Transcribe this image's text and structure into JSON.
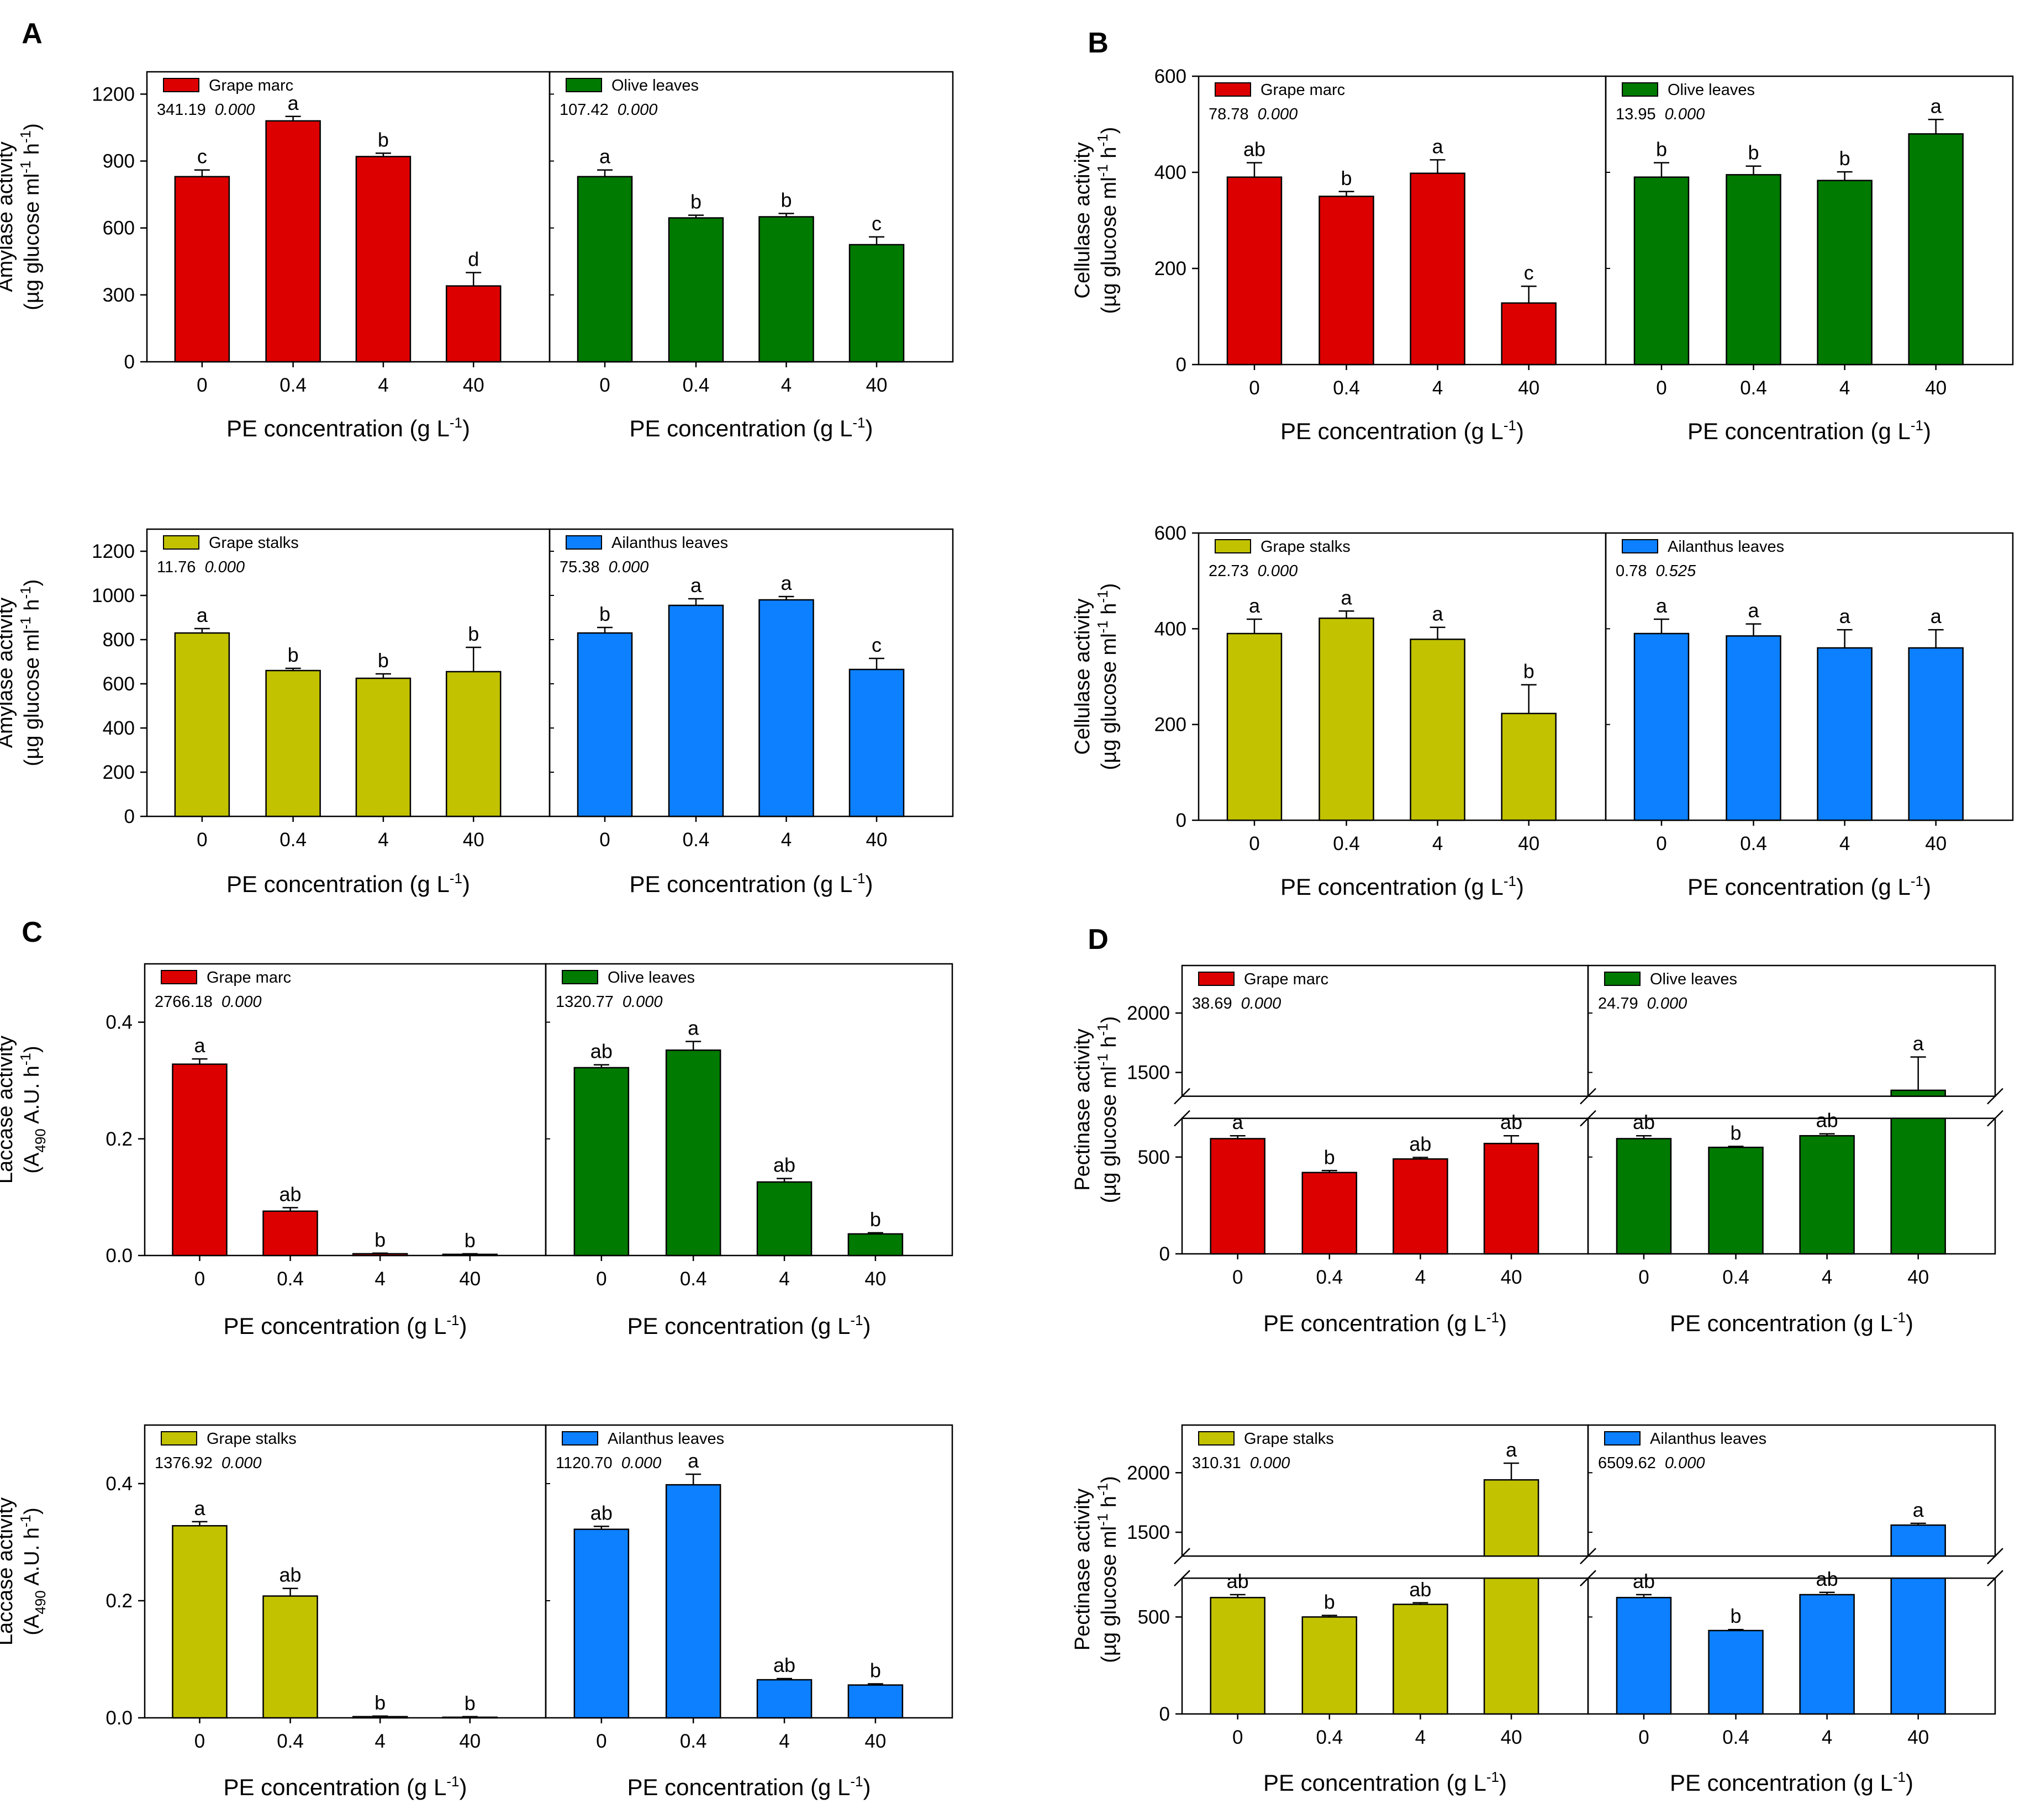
{
  "x_label": "PE concentration (g L",
  "x_label_sup": "-1",
  "x_label_end": ")",
  "categories": [
    "0",
    "0.4",
    "4",
    "40"
  ],
  "colors": {
    "grape_marc": "#dd0000",
    "olive_leaves": "#007a00",
    "grape_stalks": "#c2c200",
    "ailanthus_leaves": "#0c80ff"
  },
  "panels": [
    {
      "id": "A",
      "letter": "A",
      "ylabel_line1": "Amylase activity",
      "ylabel_line2_pre": "(µg glucose ml",
      "ylabel_line2_mid": " h",
      "ylabel_line2_end": ")",
      "rows": [
        {
          "ylim": [
            0,
            1300
          ],
          "yticks": [
            0,
            300,
            600,
            900,
            1200
          ],
          "series": [
            {
              "name": "Grape marc",
              "color_key": "grape_marc",
              "stat_f": "341.19",
              "stat_p": "0.000",
              "values": [
                830,
                1080,
                920,
                340
              ],
              "errors": [
                30,
                20,
                15,
                60
              ],
              "letters": [
                "c",
                "a",
                "b",
                "d"
              ]
            },
            {
              "name": "Olive leaves",
              "color_key": "olive_leaves",
              "stat_f": "107.42",
              "stat_p": "0.000",
              "values": [
                830,
                645,
                650,
                525
              ],
              "errors": [
                30,
                12,
                15,
                35
              ],
              "letters": [
                "a",
                "b",
                "b",
                "c"
              ]
            }
          ]
        },
        {
          "ylim": [
            0,
            1300
          ],
          "yticks": [
            0,
            200,
            400,
            600,
            800,
            1000,
            1200
          ],
          "series": [
            {
              "name": "Grape stalks",
              "color_key": "grape_stalks",
              "stat_f": "11.76",
              "stat_p": "0.000",
              "values": [
                830,
                660,
                625,
                655
              ],
              "errors": [
                20,
                10,
                20,
                110
              ],
              "letters": [
                "a",
                "b",
                "b",
                "b"
              ]
            },
            {
              "name": "Ailanthus leaves",
              "color_key": "ailanthus_leaves",
              "stat_f": "75.38",
              "stat_p": "0.000",
              "values": [
                830,
                955,
                980,
                665
              ],
              "errors": [
                25,
                30,
                15,
                50
              ],
              "letters": [
                "b",
                "a",
                "a",
                "c"
              ]
            }
          ]
        }
      ]
    },
    {
      "id": "B",
      "letter": "B",
      "ylabel_line1": "Cellulase activity",
      "ylabel_line2_pre": "(µg glucose ml",
      "ylabel_line2_mid": " h",
      "ylabel_line2_end": ")",
      "rows": [
        {
          "ylim": [
            0,
            600
          ],
          "yticks": [
            0,
            200,
            400,
            600
          ],
          "series": [
            {
              "name": "Grape marc",
              "color_key": "grape_marc",
              "stat_f": "78.78",
              "stat_p": "0.000",
              "values": [
                390,
                350,
                398,
                128
              ],
              "errors": [
                30,
                10,
                28,
                35
              ],
              "letters": [
                "ab",
                "b",
                "a",
                "c"
              ]
            },
            {
              "name": "Olive leaves",
              "color_key": "olive_leaves",
              "stat_f": "13.95",
              "stat_p": "0.000",
              "values": [
                390,
                395,
                383,
                480
              ],
              "errors": [
                30,
                18,
                18,
                30
              ],
              "letters": [
                "b",
                "b",
                "b",
                "a"
              ]
            }
          ]
        },
        {
          "ylim": [
            0,
            600
          ],
          "yticks": [
            0,
            200,
            400,
            600
          ],
          "series": [
            {
              "name": "Grape stalks",
              "color_key": "grape_stalks",
              "stat_f": "22.73",
              "stat_p": "0.000",
              "values": [
                390,
                422,
                378,
                223
              ],
              "errors": [
                30,
                15,
                25,
                60
              ],
              "letters": [
                "a",
                "a",
                "a",
                "b"
              ]
            },
            {
              "name": "Ailanthus leaves",
              "color_key": "ailanthus_leaves",
              "stat_f": "0.78",
              "stat_p": "0.525",
              "values": [
                390,
                385,
                360,
                360
              ],
              "errors": [
                30,
                25,
                38,
                38
              ],
              "letters": [
                "a",
                "a",
                "a",
                "a"
              ]
            }
          ]
        }
      ]
    },
    {
      "id": "C",
      "letter": "C",
      "ylabel_line1": "Laccase activity",
      "ylabel_line2_pre": "(A",
      "ylabel_line2_sub": "490",
      "ylabel_line2_after": " A.U. h",
      "ylabel_line2_end": ")",
      "rows": [
        {
          "ylim": [
            0,
            0.5
          ],
          "yticks": [
            0.0,
            0.2,
            0.4
          ],
          "series": [
            {
              "name": "Grape marc",
              "color_key": "grape_marc",
              "stat_f": "2766.18",
              "stat_p": "0.000",
              "values": [
                0.328,
                0.076,
                0.003,
                0.002
              ],
              "errors": [
                0.009,
                0.006,
                0.001,
                0.001
              ],
              "letters": [
                "a",
                "ab",
                "b",
                "b"
              ]
            },
            {
              "name": "Olive leaves",
              "color_key": "olive_leaves",
              "stat_f": "1320.77",
              "stat_p": "0.000",
              "values": [
                0.322,
                0.352,
                0.126,
                0.037
              ],
              "errors": [
                0.005,
                0.015,
                0.006,
                0.002
              ],
              "letters": [
                "ab",
                "a",
                "ab",
                "b"
              ]
            }
          ]
        },
        {
          "ylim": [
            0,
            0.5
          ],
          "yticks": [
            0.0,
            0.2,
            0.4
          ],
          "series": [
            {
              "name": "Grape stalks",
              "color_key": "grape_stalks",
              "stat_f": "1376.92",
              "stat_p": "0.000",
              "values": [
                0.328,
                0.208,
                0.002,
                0.001
              ],
              "errors": [
                0.007,
                0.013,
                0.001,
                0.001
              ],
              "letters": [
                "a",
                "ab",
                "b",
                "b"
              ]
            },
            {
              "name": "Ailanthus leaves",
              "color_key": "ailanthus_leaves",
              "stat_f": "1120.70",
              "stat_p": "0.000",
              "values": [
                0.322,
                0.398,
                0.065,
                0.056
              ],
              "errors": [
                0.005,
                0.018,
                0.002,
                0.002
              ],
              "letters": [
                "ab",
                "a",
                "ab",
                "b"
              ]
            }
          ]
        }
      ]
    },
    {
      "id": "D",
      "letter": "D",
      "ylabel_line1": "Pectinase activity",
      "ylabel_line2_pre": "(µg glucose ml",
      "ylabel_line2_mid": " h",
      "ylabel_line2_end": ")",
      "broken": true,
      "rows": [
        {
          "lower_ylim": [
            0,
            700
          ],
          "lower_ticks": [
            0,
            500
          ],
          "upper_ylim": [
            1300,
            2400
          ],
          "upper_ticks": [
            1500,
            2000
          ],
          "series": [
            {
              "name": "Grape marc",
              "color_key": "grape_marc",
              "stat_f": "38.69",
              "stat_p": "0.000",
              "values": [
                595,
                420,
                490,
                570
              ],
              "errors": [
                15,
                10,
                8,
                40
              ],
              "letters": [
                "a",
                "b",
                "ab",
                "ab"
              ]
            },
            {
              "name": "Olive leaves",
              "color_key": "olive_leaves",
              "stat_f": "24.79",
              "stat_p": "0.000",
              "values": [
                595,
                550,
                610,
                1350
              ],
              "errors": [
                15,
                5,
                10,
                280
              ],
              "letters": [
                "ab",
                "b",
                "ab",
                "a"
              ]
            }
          ]
        },
        {
          "lower_ylim": [
            0,
            700
          ],
          "lower_ticks": [
            0,
            500
          ],
          "upper_ylim": [
            1300,
            2400
          ],
          "upper_ticks": [
            1500,
            2000
          ],
          "series": [
            {
              "name": "Grape stalks",
              "color_key": "grape_stalks",
              "stat_f": "310.31",
              "stat_p": "0.000",
              "values": [
                600,
                500,
                565,
                1940
              ],
              "errors": [
                15,
                8,
                8,
                140
              ],
              "letters": [
                "ab",
                "b",
                "ab",
                "a"
              ]
            },
            {
              "name": "Ailanthus leaves",
              "color_key": "ailanthus_leaves",
              "stat_f": "6509.62",
              "stat_p": "0.000",
              "values": [
                600,
                430,
                615,
                1560
              ],
              "errors": [
                15,
                5,
                12,
                15
              ],
              "letters": [
                "ab",
                "b",
                "ab",
                "a"
              ]
            }
          ]
        }
      ]
    }
  ]
}
